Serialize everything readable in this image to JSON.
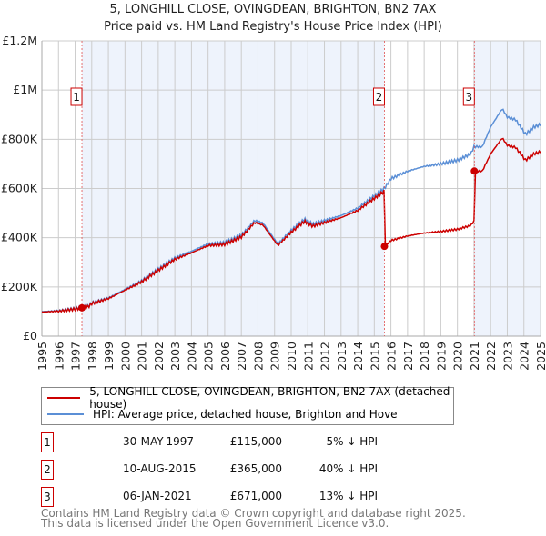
{
  "chart_data": {
    "type": "line",
    "title": "5, LONGHILL CLOSE, OVINGDEAN, BRIGHTON, BN2 7AX",
    "subtitle": "Price paid vs. HM Land Registry's House Price Index (HPI)",
    "xlim": [
      1995,
      2025
    ],
    "ylim": [
      0,
      1200000
    ],
    "y_ticks": [
      {
        "v": 0,
        "label": "£0"
      },
      {
        "v": 200000,
        "label": "£200K"
      },
      {
        "v": 400000,
        "label": "£400K"
      },
      {
        "v": 600000,
        "label": "£600K"
      },
      {
        "v": 800000,
        "label": "£800K"
      },
      {
        "v": 1000000,
        "label": "£1M"
      },
      {
        "v": 1200000,
        "label": "£1.2M"
      }
    ],
    "x_ticks": [
      "1995",
      "1996",
      "1997",
      "1998",
      "1999",
      "2000",
      "2001",
      "2002",
      "2003",
      "2004",
      "2005",
      "2006",
      "2007",
      "2008",
      "2009",
      "2010",
      "2011",
      "2012",
      "2013",
      "2014",
      "2015",
      "2016",
      "2017",
      "2018",
      "2019",
      "2020",
      "2021",
      "2022",
      "2023",
      "2024",
      "2025"
    ],
    "grid": true,
    "series": [
      {
        "name": "5, LONGHILL CLOSE, OVINGDEAN, BRIGHTON, BN2 7AX (detached house)",
        "color": "#cc0000"
      },
      {
        "name": "HPI: Average price, detached house, Brighton and Hove",
        "color": "#5b8fd6",
        "x": [
          1995,
          1996,
          1997,
          1997.8,
          1998,
          1999,
          2000,
          2001,
          2002,
          2003,
          2004,
          2005,
          2006,
          2007,
          2007.8,
          2008.3,
          2009.2,
          2010,
          2010.8,
          2011.3,
          2012,
          2013,
          2014,
          2015,
          2015.6,
          2016,
          2017,
          2018,
          2019,
          2020,
          2020.8,
          2021,
          2021.5,
          2022,
          2022.7,
          2023,
          2023.5,
          2024.1,
          2024.6,
          2025
        ],
        "values": [
          100000,
          103000,
          112000,
          122000,
          135000,
          155000,
          190000,
          225000,
          272000,
          318000,
          345000,
          375000,
          380000,
          410000,
          470000,
          460000,
          375000,
          430000,
          475000,
          455000,
          470000,
          490000,
          520000,
          570000,
          600000,
          640000,
          670000,
          690000,
          700000,
          715000,
          740000,
          770000,
          770000,
          850000,
          925000,
          890000,
          880000,
          820000,
          850000,
          860000
        ]
      }
    ],
    "sales": [
      {
        "n": "1",
        "x": 1997.41,
        "date": "30-MAY-1997",
        "price": 115000,
        "price_label": "£115,000",
        "hpi": "5% ↓ HPI"
      },
      {
        "n": "2",
        "x": 2015.61,
        "date": "10-AUG-2015",
        "price": 365000,
        "price_label": "£365,000",
        "hpi": "40% ↓ HPI"
      },
      {
        "n": "3",
        "x": 2021.02,
        "date": "06-JAN-2021",
        "price": 671000,
        "price_label": "£671,000",
        "hpi": "13% ↓ HPI"
      }
    ]
  },
  "footer": {
    "line1": "Contains HM Land Registry data © Crown copyright and database right 2025.",
    "line2": "This data is licensed under the Open Government Licence v3.0."
  }
}
